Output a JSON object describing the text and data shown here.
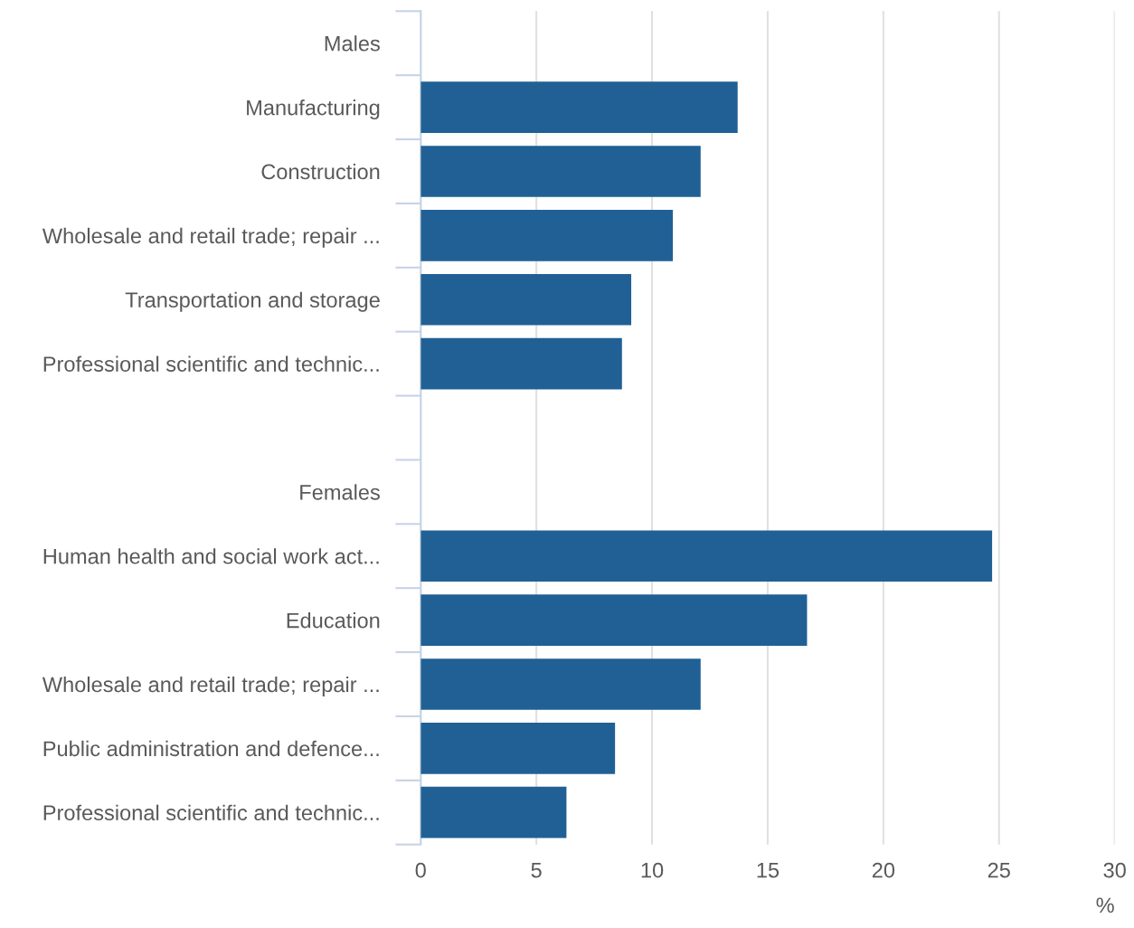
{
  "chart_data": {
    "type": "bar",
    "orientation": "horizontal",
    "categories": [
      "Males",
      "Manufacturing",
      "Construction",
      "Wholesale and retail trade; repair ...",
      "Transportation and storage",
      "Professional scientific and technic...",
      null,
      "Females",
      "Human health and social work act...",
      "Education",
      "Wholesale and retail trade; repair ...",
      "Public administration and defence...",
      "Professional scientific and technic..."
    ],
    "values": [
      null,
      13.7,
      12.1,
      10.9,
      9.1,
      8.7,
      null,
      null,
      24.7,
      16.7,
      12.1,
      8.4,
      6.3
    ],
    "color": "#206095",
    "xlabel": "%",
    "xlim": [
      0,
      30
    ],
    "xticks": [
      0,
      5,
      10,
      15,
      20,
      25,
      30
    ],
    "grid": "x",
    "legend": false
  }
}
